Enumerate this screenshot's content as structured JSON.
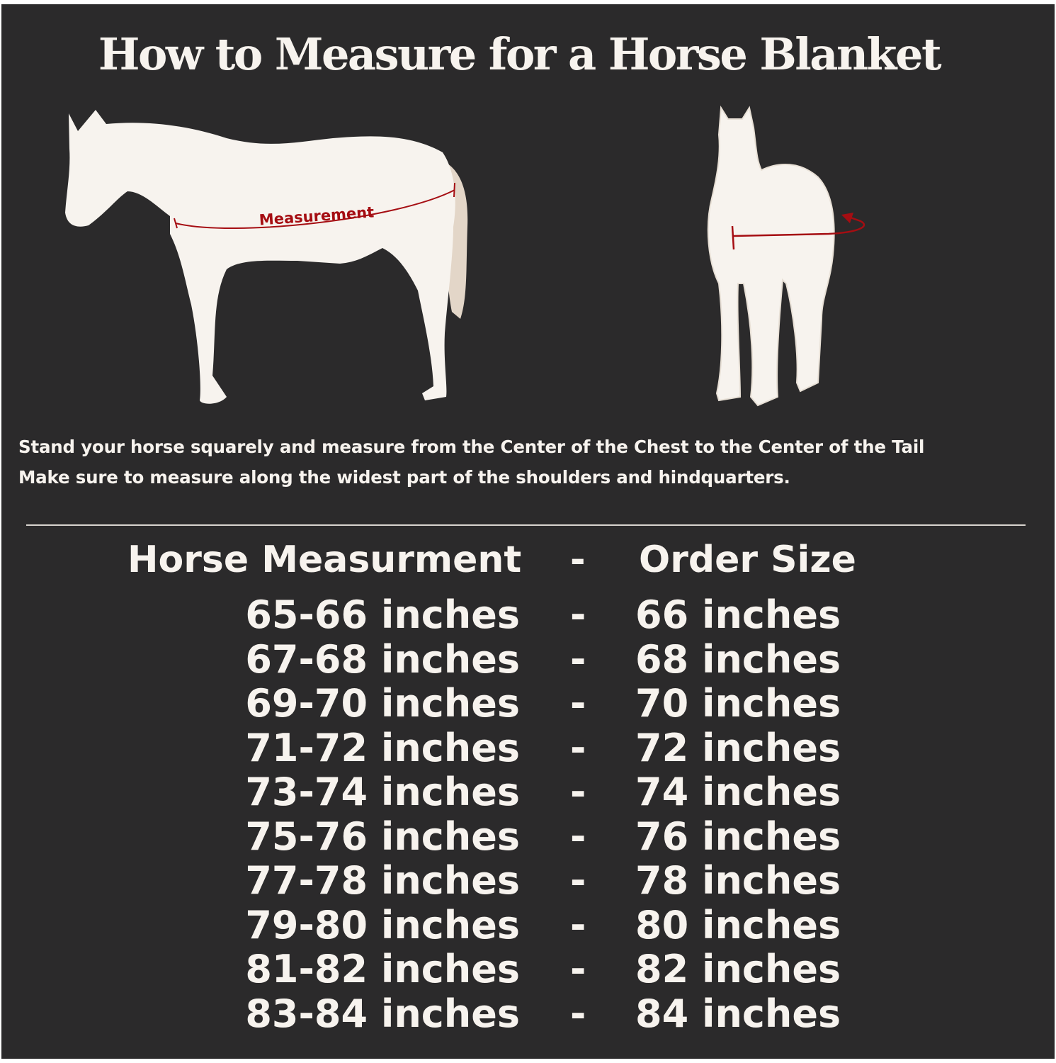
{
  "title": "How to Measure for a Horse Blanket",
  "diagram_label": "Measurement",
  "instructions": [
    "Stand your horse squarely and measure from the Center of the Chest to the Center of the Tail",
    "Make sure to measure along the widest part of the shoulders and hindquarters."
  ],
  "table": {
    "header_left": "Horse Measurment",
    "header_sep": "-",
    "header_right": "Order Size",
    "rows": [
      {
        "measure": "65-66 inches",
        "sep": "-",
        "size": "66 inches"
      },
      {
        "measure": "67-68 inches",
        "sep": "-",
        "size": "68 inches"
      },
      {
        "measure": "69-70 inches",
        "sep": "-",
        "size": "70 inches"
      },
      {
        "measure": "71-72 inches",
        "sep": "-",
        "size": "72 inches"
      },
      {
        "measure": "73-74 inches",
        "sep": "-",
        "size": "74 inches"
      },
      {
        "measure": "75-76 inches",
        "sep": "-",
        "size": "76 inches"
      },
      {
        "measure": "77-78 inches",
        "sep": "-",
        "size": "78 inches"
      },
      {
        "measure": "79-80 inches",
        "sep": "-",
        "size": "80 inches"
      },
      {
        "measure": "81-82 inches",
        "sep": "-",
        "size": "82 inches"
      },
      {
        "measure": "83-84 inches",
        "sep": "-",
        "size": "84 inches"
      }
    ]
  },
  "colors": {
    "background": "#2b2a2b",
    "horse": "#f7f3ee",
    "tail": "#e3d6c8",
    "accent": "#a50d12"
  }
}
